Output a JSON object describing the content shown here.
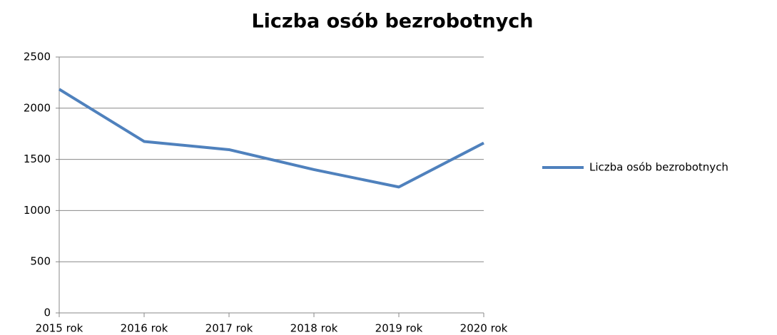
{
  "chart_data": {
    "type": "line",
    "title": "Liczba osób bezrobotnych",
    "categories": [
      "2015 rok",
      "2016 rok",
      "2017 rok",
      "2018 rok",
      "2019 rok",
      "2020 rok"
    ],
    "series": [
      {
        "name": "Liczba osób bezrobotnych",
        "color": "#4f81bd",
        "values": [
          2185,
          1675,
          1595,
          1400,
          1230,
          1660
        ]
      }
    ],
    "ylim": [
      0,
      2500
    ],
    "yticks": [
      0,
      500,
      1000,
      1500,
      2000,
      2500
    ],
    "grid": true,
    "legend": "right"
  }
}
